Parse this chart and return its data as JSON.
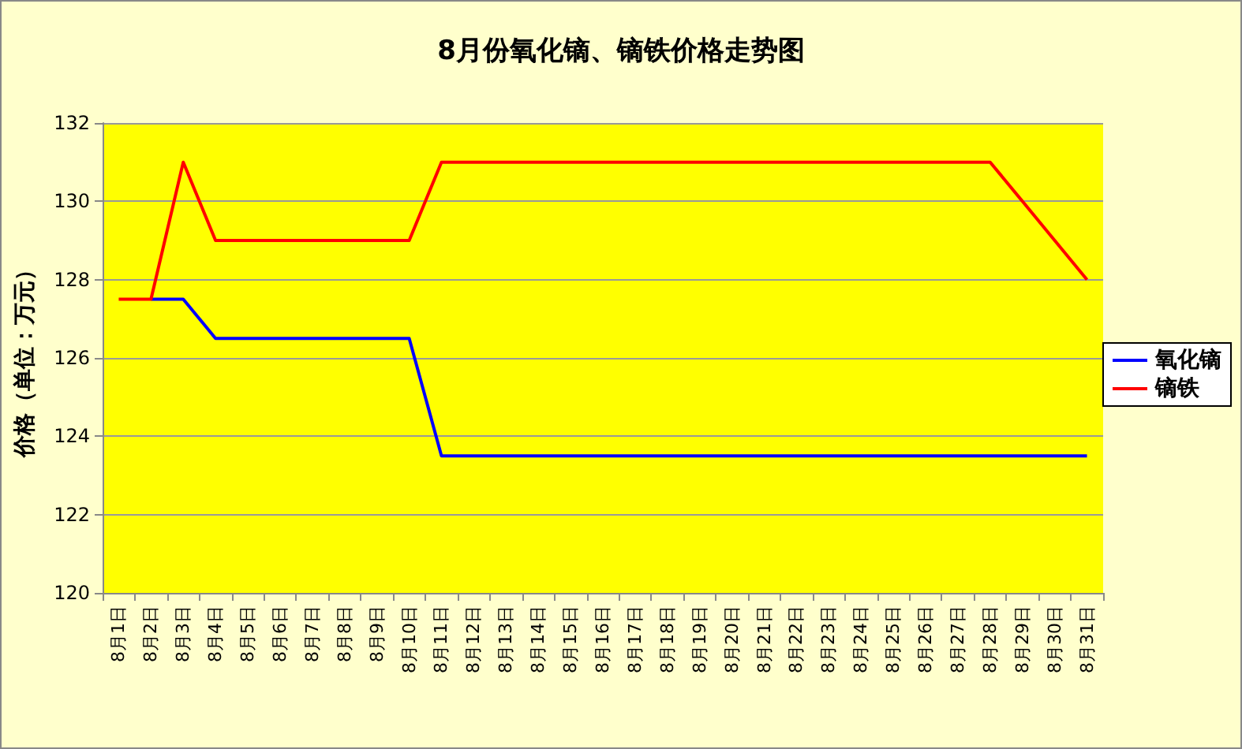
{
  "chart_data": {
    "type": "line",
    "title": "8月份氧化镝、镝铁价格走势图",
    "ylabel": "价格（单位：万元）",
    "categories": [
      "8月1日",
      "8月2日",
      "8月3日",
      "8月4日",
      "8月5日",
      "8月6日",
      "8月7日",
      "8月8日",
      "8月9日",
      "8月10日",
      "8月11日",
      "8月12日",
      "8月13日",
      "8月14日",
      "8月15日",
      "8月16日",
      "8月17日",
      "8月18日",
      "8月19日",
      "8月20日",
      "8月21日",
      "8月22日",
      "8月23日",
      "8月24日",
      "8月25日",
      "8月26日",
      "8月27日",
      "8月28日",
      "8月29日",
      "8月30日",
      "8月31日"
    ],
    "series": [
      {
        "name": "氧化镝",
        "color": "#0000ff",
        "values": [
          null,
          127.5,
          127.5,
          126.5,
          126.5,
          126.5,
          126.5,
          126.5,
          126.5,
          126.5,
          123.5,
          123.5,
          123.5,
          123.5,
          123.5,
          123.5,
          123.5,
          123.5,
          123.5,
          123.5,
          123.5,
          123.5,
          123.5,
          123.5,
          123.5,
          123.5,
          123.5,
          123.5,
          123.5,
          123.5,
          123.5
        ]
      },
      {
        "name": "镝铁",
        "color": "#ff0000",
        "values": [
          127.5,
          127.5,
          131,
          129,
          129,
          129,
          129,
          129,
          129,
          129,
          131,
          131,
          131,
          131,
          131,
          131,
          131,
          131,
          131,
          131,
          131,
          131,
          131,
          131,
          131,
          131,
          131,
          131,
          130,
          129,
          128
        ]
      }
    ],
    "ylim": [
      120,
      132
    ],
    "yticks": [
      120,
      122,
      124,
      126,
      128,
      130,
      132
    ],
    "grid": "y",
    "legend": "right",
    "marker": "none",
    "line_style": "solid"
  }
}
